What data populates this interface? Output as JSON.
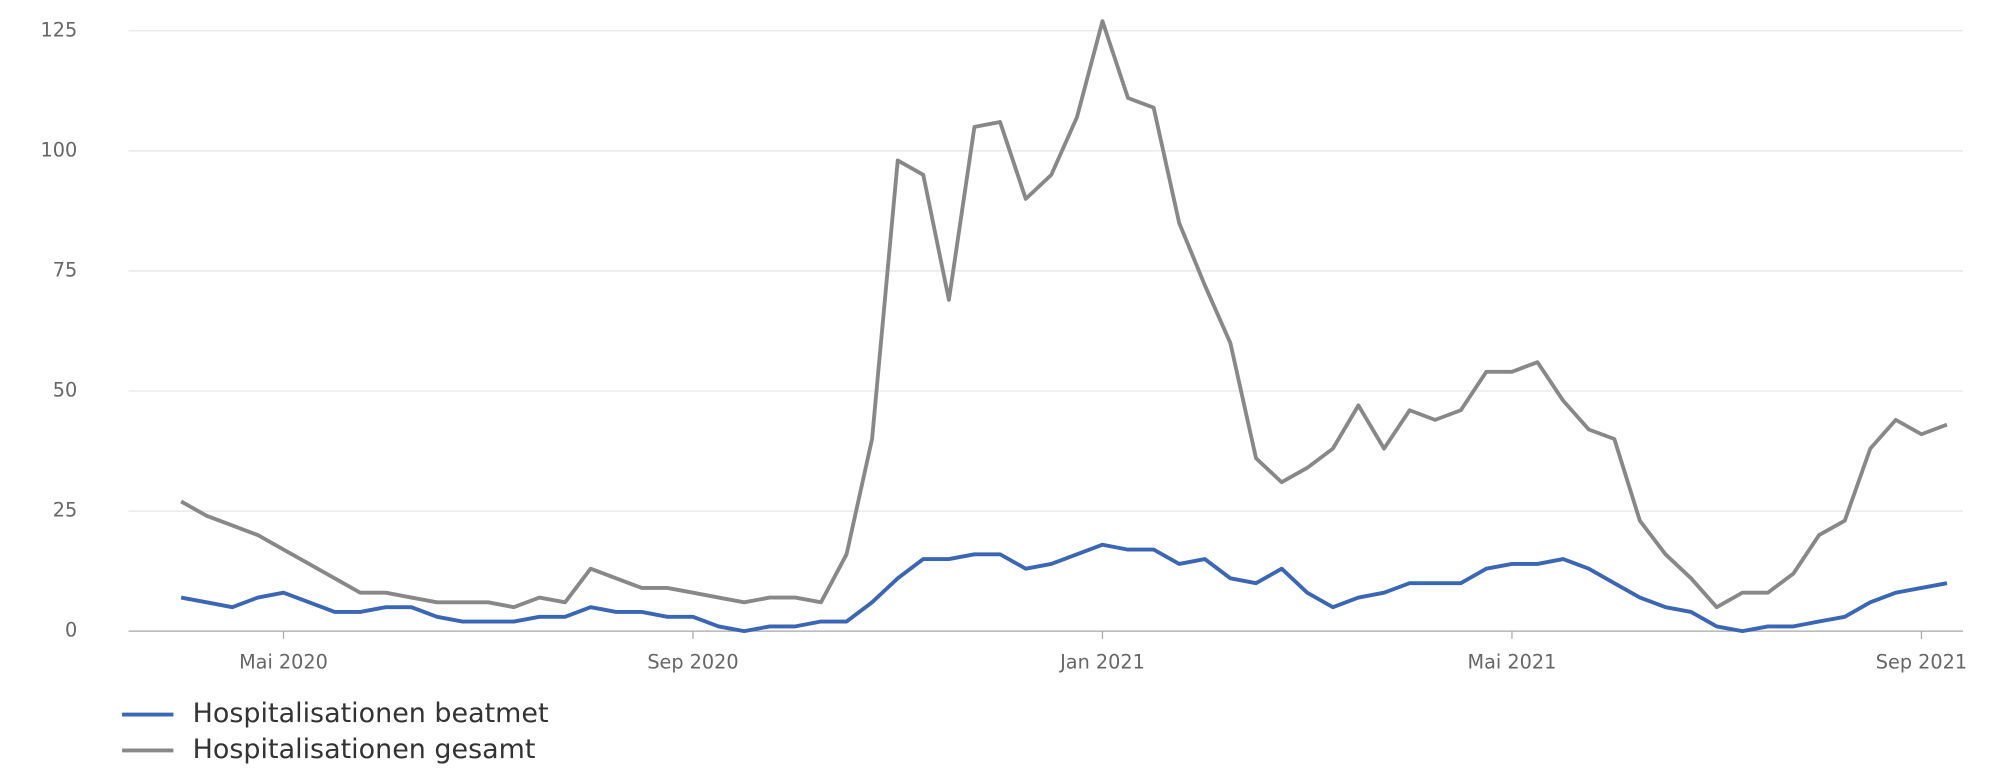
{
  "chart_data": {
    "type": "line",
    "categories": [
      null,
      null,
      null,
      null,
      "Mai 2020",
      null,
      null,
      null,
      null,
      null,
      null,
      null,
      null,
      null,
      null,
      null,
      null,
      null,
      null,
      null,
      "Sep 2020",
      null,
      null,
      null,
      null,
      null,
      null,
      null,
      null,
      null,
      null,
      null,
      null,
      null,
      null,
      null,
      "Jan 2021",
      null,
      null,
      null,
      null,
      null,
      null,
      null,
      null,
      null,
      null,
      null,
      null,
      null,
      null,
      null,
      "Mai 2021",
      null,
      null,
      null,
      null,
      null,
      null,
      null,
      null,
      null,
      null,
      null,
      null,
      null,
      null,
      null,
      "Sep 2021",
      null
    ],
    "series": [
      {
        "name": "Hospitalisationen beatmet",
        "color": "#3a66b5",
        "values": [
          7,
          6,
          5,
          7,
          8,
          6,
          4,
          4,
          5,
          5,
          3,
          2,
          2,
          2,
          3,
          3,
          5,
          4,
          4,
          3,
          3,
          1,
          0,
          1,
          1,
          2,
          2,
          6,
          11,
          15,
          15,
          16,
          16,
          13,
          14,
          16,
          18,
          17,
          17,
          14,
          15,
          11,
          10,
          13,
          8,
          5,
          7,
          8,
          10,
          10,
          10,
          13,
          14,
          14,
          15,
          13,
          10,
          7,
          5,
          4,
          1,
          0,
          1,
          1,
          2,
          3,
          6,
          8,
          9,
          10
        ]
      },
      {
        "name": "Hospitalisationen gesamt",
        "color": "#888888",
        "values": [
          27,
          24,
          22,
          20,
          17,
          14,
          11,
          8,
          8,
          7,
          6,
          6,
          6,
          5,
          7,
          6,
          13,
          11,
          9,
          9,
          8,
          7,
          6,
          7,
          7,
          6,
          16,
          40,
          98,
          95,
          69,
          105,
          106,
          90,
          95,
          107,
          127,
          111,
          109,
          85,
          72,
          60,
          36,
          31,
          34,
          38,
          47,
          38,
          46,
          44,
          46,
          54,
          54,
          56,
          48,
          42,
          40,
          23,
          16,
          11,
          5,
          8,
          8,
          12,
          20,
          23,
          38,
          44,
          41,
          43
        ]
      }
    ],
    "ylim": [
      0,
      125
    ],
    "yticks": [
      0,
      25,
      50,
      75,
      100,
      125
    ],
    "grid": true
  }
}
